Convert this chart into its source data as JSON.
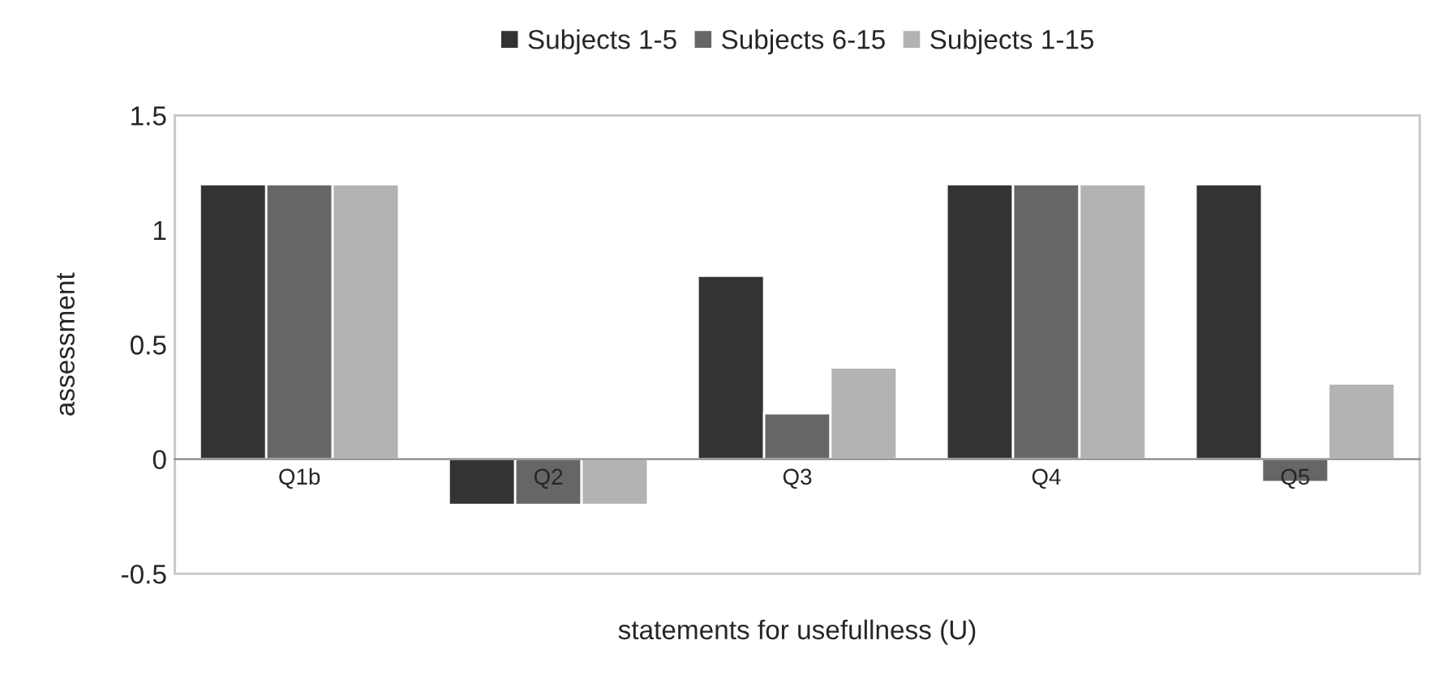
{
  "chart_data": {
    "type": "bar",
    "xlabel": "statements for usefullness (U)",
    "ylabel": "assessment",
    "categories": [
      "Q1b",
      "Q2",
      "Q3",
      "Q4",
      "Q5"
    ],
    "series": [
      {
        "name": "Subjects 1-5",
        "color": "#333333",
        "values": [
          1.2,
          -0.2,
          0.8,
          1.2,
          1.2
        ]
      },
      {
        "name": "Subjects 6-15",
        "color": "#666666",
        "values": [
          1.2,
          -0.2,
          0.2,
          1.2,
          -0.1
        ]
      },
      {
        "name": "Subjects 1-15",
        "color": "#b3b3b3",
        "values": [
          1.2,
          -0.2,
          0.4,
          1.2,
          0.33
        ]
      }
    ],
    "ylim": [
      -0.5,
      1.5
    ],
    "yticks": [
      -0.5,
      0,
      0.5,
      1,
      1.5
    ],
    "grid": false,
    "legend": "top"
  }
}
